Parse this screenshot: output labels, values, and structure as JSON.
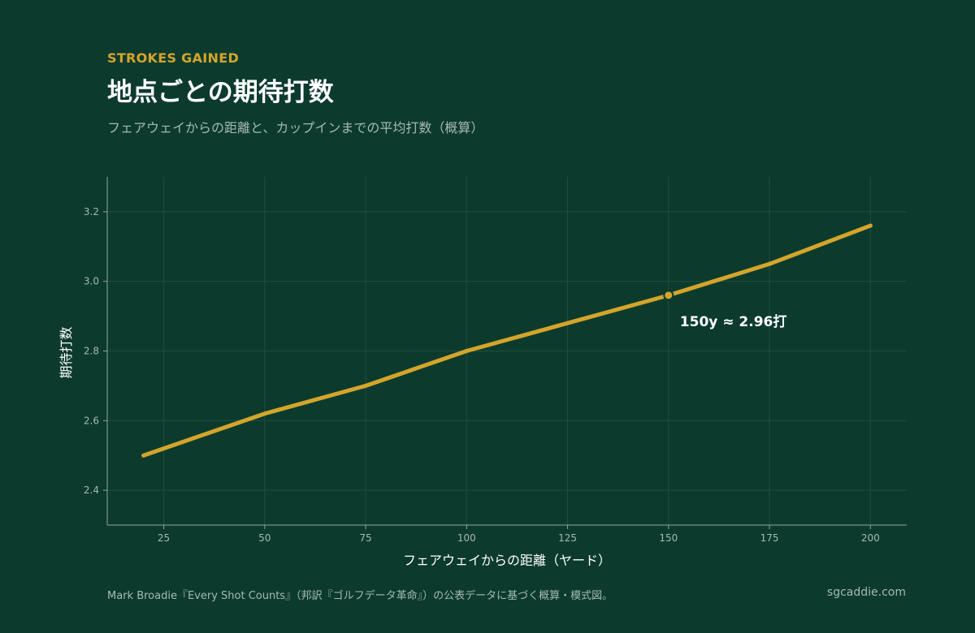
{
  "header": {
    "eyebrow": "STROKES GAINED",
    "title": "地点ごとの期待打数",
    "subtitle": "フェアウェイからの距離と、カップインまでの平均打数（概算）"
  },
  "footer": {
    "note": "Mark Broadie『Every Shot Counts』（邦訳『ゴルフデータ革命』）の公表データに基づく概算・模式図。",
    "site": "sgcaddie.com"
  },
  "colors": {
    "background": "#0c3b2e",
    "accent": "#d4a52b",
    "text": "#ffffff",
    "muted": "#a7b9b1",
    "grid": "#1f4f41",
    "axis": "#8fa59b"
  },
  "chart_data": {
    "type": "line",
    "title": "地点ごとの期待打数",
    "xlabel": "フェアウェイからの距離（ヤード）",
    "ylabel": "期待打数",
    "xlim": [
      11,
      209
    ],
    "ylim": [
      2.3,
      3.3
    ],
    "x_ticks": [
      25,
      50,
      75,
      100,
      125,
      150,
      175,
      200
    ],
    "y_ticks": [
      2.4,
      2.6,
      2.8,
      3.0,
      3.2
    ],
    "x_tick_labels": [
      "25",
      "50",
      "75",
      "100",
      "125",
      "150",
      "175",
      "200"
    ],
    "y_tick_labels": [
      "2.4",
      "2.6",
      "2.8",
      "3.0",
      "3.2"
    ],
    "grid": true,
    "legend": "none",
    "series": [
      {
        "x": [
          20,
          50,
          75,
          100,
          125,
          150,
          175,
          200
        ],
        "values": [
          2.5,
          2.62,
          2.7,
          2.8,
          2.88,
          2.96,
          3.05,
          3.16
        ]
      }
    ],
    "annotation": {
      "x": 150,
      "y": 2.96,
      "text": "150y ≈ 2.96打"
    }
  }
}
